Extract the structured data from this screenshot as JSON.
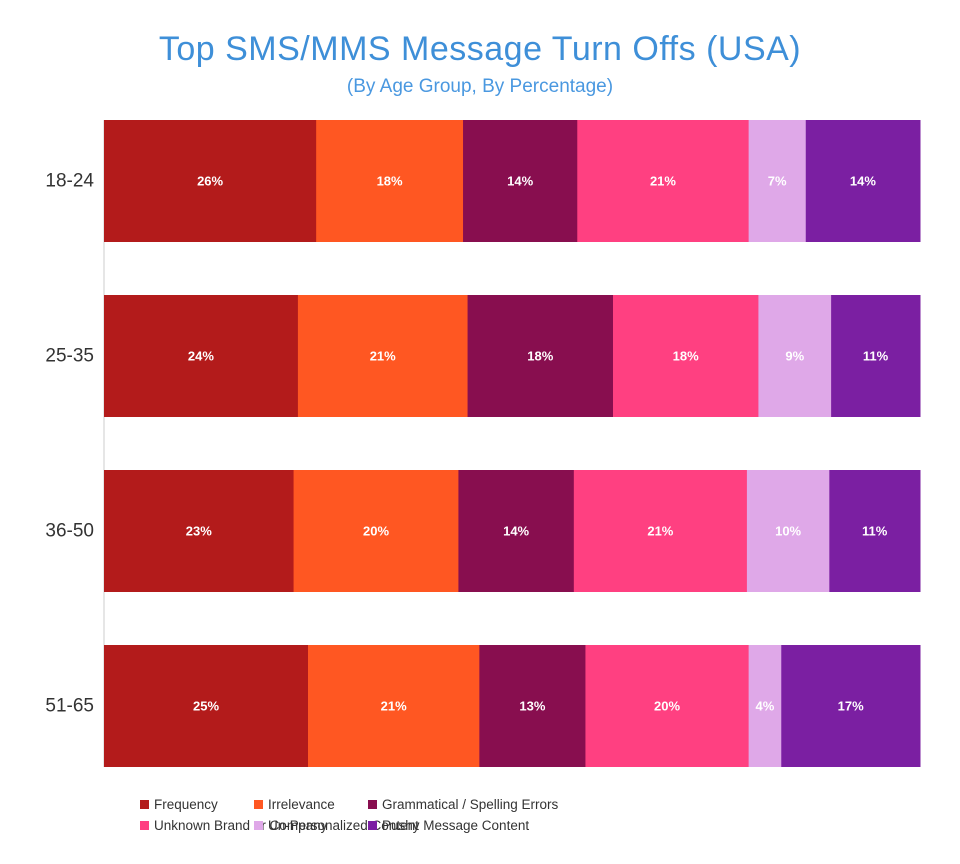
{
  "chart_data": {
    "type": "bar",
    "orientation": "horizontal",
    "stacked": true,
    "title": "Top SMS/MMS Message Turn Offs (USA)",
    "subtitle": "(By Age Group, By Percentage)",
    "categories": [
      "18-24",
      "25-35",
      "36-50",
      "51-65"
    ],
    "series": [
      {
        "name": "Frequency",
        "color": "#b31b1b",
        "values": [
          26,
          24,
          23,
          25
        ]
      },
      {
        "name": "Irrelevance",
        "color": "#ff5722",
        "values": [
          18,
          21,
          20,
          21
        ]
      },
      {
        "name": "Grammatical / Spelling Errors",
        "color": "#880e4f",
        "values": [
          14,
          18,
          14,
          13
        ]
      },
      {
        "name": "Unknown Brand or Company",
        "color": "#ff4081",
        "values": [
          21,
          18,
          21,
          20
        ]
      },
      {
        "name": "Un-Personalized Content",
        "color": "#dfa8e8",
        "values": [
          7,
          9,
          10,
          4
        ]
      },
      {
        "name": "Pushy Message Content",
        "color": "#7b1fa2",
        "values": [
          14,
          11,
          11,
          17
        ]
      }
    ],
    "xlabel": "",
    "ylabel": "",
    "legend_position": "bottom"
  }
}
